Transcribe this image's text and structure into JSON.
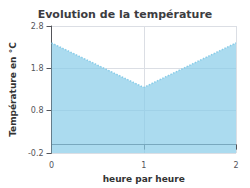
{
  "chart_data": {
    "type": "area",
    "title": "Evolution de la température",
    "xlabel": "heure par heure",
    "ylabel": "Température en °C",
    "x": [
      0,
      1,
      2
    ],
    "values": [
      2.4,
      1.35,
      2.4
    ],
    "xlim": [
      0,
      2
    ],
    "ylim": [
      -0.2,
      2.8
    ],
    "xticks": [
      0,
      1,
      2
    ],
    "yticks": [
      -0.2,
      0.8,
      1.8,
      2.8
    ],
    "color": "#88cce8",
    "line_style": "dotted",
    "grid": true
  }
}
